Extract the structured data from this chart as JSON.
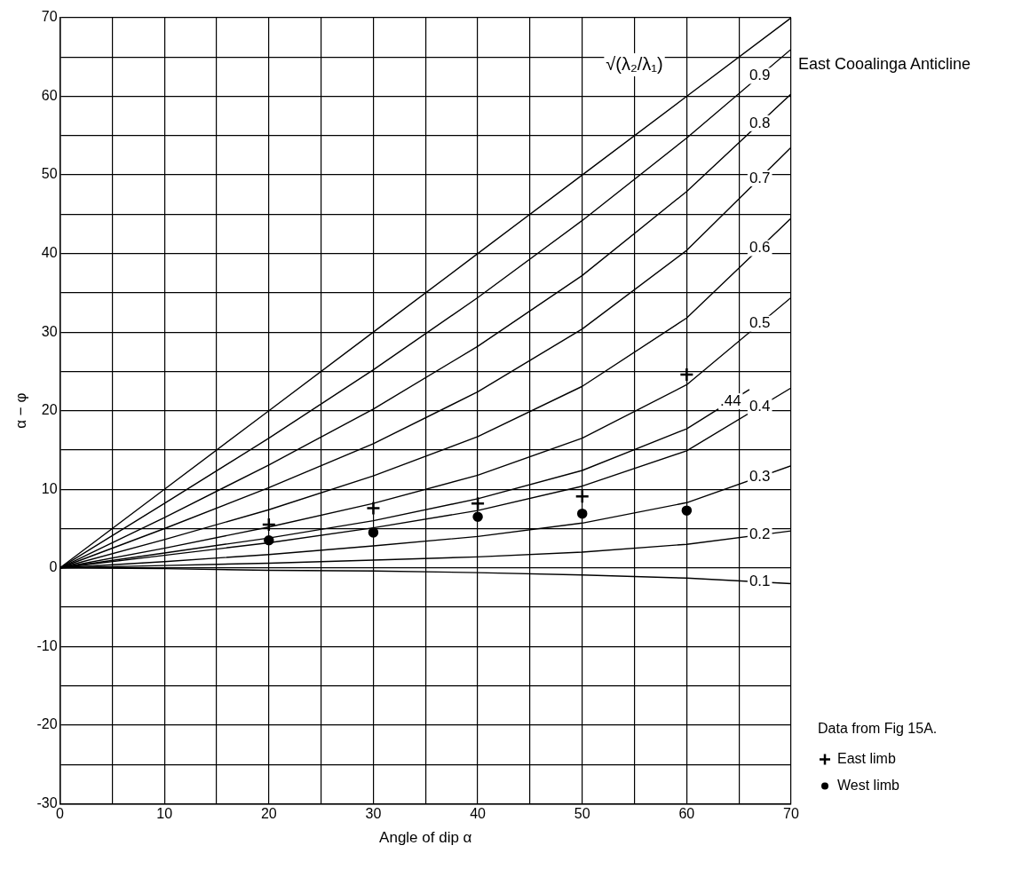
{
  "chart_data": {
    "type": "line",
    "xlabel": "Angle of dip α",
    "ylabel": "α − φ",
    "legend_title": "Data from Fig 15A.",
    "legend": "bottom right",
    "grid": true,
    "annotations": [
      "East Cooalinga Anticline",
      "√(λ₂/λ₁)"
    ],
    "xlim": [
      0,
      70
    ],
    "xticks": [
      0,
      {
        "value": 5,
        "label": null
      },
      10,
      {
        "value": 15,
        "label": null
      },
      20,
      {
        "value": 25,
        "label": null
      },
      30,
      {
        "value": 35,
        "label": null
      },
      40,
      {
        "value": 45,
        "label": null
      },
      50,
      {
        "value": 55,
        "label": null
      },
      60,
      {
        "value": 65,
        "label": null
      },
      70
    ],
    "ylim": [
      -30,
      70
    ],
    "yticks": [
      -30,
      {
        "value": -25,
        "label": null
      },
      -20,
      {
        "value": -15,
        "label": null
      },
      -10,
      {
        "value": -5,
        "label": null
      },
      0,
      {
        "value": 5,
        "label": null
      },
      10,
      {
        "value": 15,
        "label": null
      },
      20,
      {
        "value": 25,
        "label": null
      },
      30,
      {
        "value": 35,
        "label": null
      },
      40,
      {
        "value": 45,
        "label": null
      },
      50,
      {
        "value": 55,
        "label": null
      },
      60,
      {
        "value": 65,
        "label": null
      },
      70
    ],
    "series": [
      {
        "type": "line",
        "color": "#000000",
        "x": [
          0,
          10,
          20,
          30,
          40,
          50,
          60,
          70
        ],
        "values": [
          0,
          10,
          20,
          30,
          40,
          50,
          60,
          70
        ]
      },
      {
        "type": "line",
        "name": "0.9",
        "color": "#000000",
        "x": [
          0,
          10,
          20,
          30,
          40,
          50,
          60,
          70
        ],
        "values": [
          0,
          8.2,
          16.5,
          25.2,
          34.4,
          44.2,
          54.7,
          66
        ]
      },
      {
        "type": "line",
        "name": "0.8",
        "color": "#000000",
        "x": [
          0,
          10,
          20,
          30,
          40,
          50,
          60,
          70
        ],
        "values": [
          0,
          6.4,
          13.1,
          20.2,
          28.2,
          37.2,
          47.9,
          60.3
        ]
      },
      {
        "type": "line",
        "name": "0.7",
        "color": "#000000",
        "x": [
          0,
          10,
          20,
          30,
          40,
          50,
          60,
          70
        ],
        "values": [
          0,
          5,
          10.2,
          15.8,
          22.4,
          30.4,
          40.4,
          53.5
        ]
      },
      {
        "type": "line",
        "name": "0.6",
        "color": "#000000",
        "x": [
          0,
          10,
          20,
          30,
          40,
          50,
          60,
          70
        ],
        "values": [
          0,
          3.6,
          7.4,
          11.7,
          16.7,
          23.1,
          31.8,
          44.5
        ]
      },
      {
        "type": "line",
        "name": "0.5",
        "color": "#000000",
        "x": [
          0,
          10,
          20,
          30,
          40,
          50,
          60,
          70
        ],
        "values": [
          0,
          2.5,
          5.2,
          8.2,
          11.8,
          16.5,
          23.3,
          34.4
        ]
      },
      {
        "type": "line",
        "name": ".44",
        "color": "#000000",
        "x": [
          0,
          10,
          20,
          30,
          40,
          50,
          60,
          66
        ],
        "values": [
          0,
          1.9,
          3.8,
          6,
          8.8,
          12.4,
          17.7,
          22.7
        ]
      },
      {
        "type": "line",
        "name": "0.4",
        "color": "#000000",
        "x": [
          0,
          10,
          20,
          30,
          40,
          50,
          60,
          70
        ],
        "values": [
          0,
          1.6,
          3.2,
          5.1,
          7.3,
          10.4,
          14.9,
          22.9
        ]
      },
      {
        "type": "line",
        "name": "0.3",
        "color": "#000000",
        "x": [
          0,
          10,
          20,
          30,
          40,
          50,
          60,
          70
        ],
        "values": [
          0,
          0.8,
          1.7,
          2.8,
          4,
          5.7,
          8.3,
          13
        ]
      },
      {
        "type": "line",
        "name": "0.2",
        "color": "#000000",
        "x": [
          0,
          10,
          20,
          30,
          40,
          50,
          60,
          70
        ],
        "values": [
          0,
          0.3,
          0.6,
          1,
          1.4,
          2,
          3,
          4.7
        ]
      },
      {
        "type": "line",
        "name": "0.1",
        "color": "#000000",
        "x": [
          0,
          10,
          20,
          30,
          40,
          50,
          60,
          70
        ],
        "values": [
          0,
          -0.1,
          -0.3,
          -0.4,
          -0.6,
          -0.9,
          -1.3,
          -2
        ]
      },
      {
        "type": "scatter",
        "name": "East limb",
        "color": "#000000",
        "marker": "cross",
        "x": [
          20,
          30,
          40,
          50,
          60
        ],
        "values": [
          5.5,
          7.6,
          8.2,
          9.1,
          24.6
        ]
      },
      {
        "type": "scatter",
        "name": "West limb",
        "color": "#000000",
        "marker": "circle",
        "x": [
          20,
          30,
          40,
          50,
          60
        ],
        "values": [
          3.5,
          4.5,
          6.5,
          6.9,
          7.3
        ]
      }
    ]
  }
}
